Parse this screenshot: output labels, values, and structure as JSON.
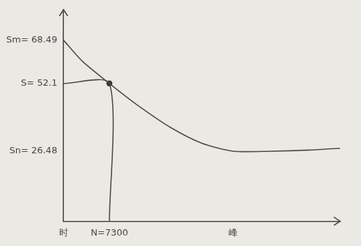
{
  "chart_data": {
    "type": "line",
    "series": [
      {
        "x": [
          0,
          3000,
          7300,
          12000,
          17000,
          22000,
          27000,
          33000,
          39000,
          44000
        ],
        "values": [
          68.49,
          60.5,
          52.1,
          43.5,
          35.5,
          29.5,
          26.48,
          26.48,
          26.9,
          27.6
        ],
        "color": "#4a4a4a",
        "line_style": "solid",
        "marker": "none"
      },
      {
        "x": [
          0,
          7300,
          7300
        ],
        "values": [
          52.1,
          52.1,
          0
        ],
        "color": "#4a4a4a",
        "line_style": "solid",
        "marker": "none"
      },
      {
        "x": [
          7300
        ],
        "values": [
          52.1
        ],
        "color": "#333333",
        "type": "scatter",
        "marker": "circle"
      }
    ],
    "xlim": [
      0,
      44000
    ],
    "xticks": [
      {
        "value": 0,
        "label": "时"
      },
      {
        "value": 7300,
        "label": "N=7300"
      },
      {
        "value": 27000,
        "label": "峰"
      }
    ],
    "ylim": [
      0,
      80
    ],
    "yticks": [
      {
        "value": 26.48,
        "label": "Sn= 26.48"
      },
      {
        "value": 52.1,
        "label": "S= 52.1"
      },
      {
        "value": 68.49,
        "label": "Sm= 68.49"
      }
    ],
    "grid": false
  }
}
